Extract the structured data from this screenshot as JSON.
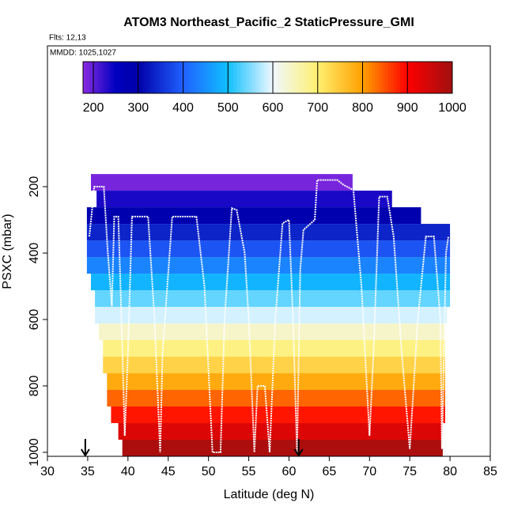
{
  "chart_data": {
    "type": "curtain",
    "title": "ATOM3 Northeast_Pacific_2 StaticPressure_GMI",
    "flights_label": "Flts: 12,13",
    "dates_label": "MMDD: 1025,1027",
    "xlabel": "Latitude (deg N)",
    "ylabel": "PSXC (mbar)",
    "xlim": [
      30,
      85
    ],
    "xticks": [
      30,
      35,
      40,
      45,
      50,
      55,
      60,
      65,
      70,
      75,
      80,
      85
    ],
    "ylim": [
      1012,
      -224
    ],
    "yticks": [
      200,
      400,
      600,
      800,
      1000
    ],
    "colorbar_lim": [
      177,
      1000
    ],
    "colorbar_ticks": [
      200,
      300,
      400,
      500,
      600,
      700,
      800,
      900,
      1000
    ],
    "colorscale": [
      [
        177,
        "#8a2be2"
      ],
      [
        250,
        "#0000c0"
      ],
      [
        300,
        "#0000a8"
      ],
      [
        400,
        "#2060ff"
      ],
      [
        500,
        "#10c0ff"
      ],
      [
        600,
        "#f0f8ff"
      ],
      [
        700,
        "#fff070"
      ],
      [
        800,
        "#ffa000"
      ],
      [
        900,
        "#ff0000"
      ],
      [
        1000,
        "#a01010"
      ]
    ],
    "layers": [
      {
        "value": 187,
        "p_top": 162,
        "p_bottom": 212,
        "lat_start": 35.4,
        "lat_end": 67.9
      },
      {
        "value": 237,
        "p_top": 212,
        "p_bottom": 262,
        "lat_start": 36.1,
        "lat_end": 72.8
      },
      {
        "value": 287,
        "p_top": 262,
        "p_bottom": 312,
        "lat_start": 34.9,
        "lat_end": 76.4
      },
      {
        "value": 337,
        "p_top": 312,
        "p_bottom": 362,
        "lat_start": 34.9,
        "lat_end": 80.0
      },
      {
        "value": 387,
        "p_top": 362,
        "p_bottom": 412,
        "lat_start": 34.9,
        "lat_end": 80.0
      },
      {
        "value": 437,
        "p_top": 412,
        "p_bottom": 462,
        "lat_start": 34.9,
        "lat_end": 80.0
      },
      {
        "value": 487,
        "p_top": 462,
        "p_bottom": 512,
        "lat_start": 35.4,
        "lat_end": 80.0
      },
      {
        "value": 537,
        "p_top": 512,
        "p_bottom": 562,
        "lat_start": 35.9,
        "lat_end": 80.0
      },
      {
        "value": 587,
        "p_top": 562,
        "p_bottom": 612,
        "lat_start": 35.9,
        "lat_end": 79.6
      },
      {
        "value": 637,
        "p_top": 612,
        "p_bottom": 662,
        "lat_start": 36.4,
        "lat_end": 79.4
      },
      {
        "value": 687,
        "p_top": 662,
        "p_bottom": 712,
        "lat_start": 36.9,
        "lat_end": 79.4
      },
      {
        "value": 737,
        "p_top": 712,
        "p_bottom": 762,
        "lat_start": 36.9,
        "lat_end": 79.4
      },
      {
        "value": 787,
        "p_top": 762,
        "p_bottom": 812,
        "lat_start": 37.4,
        "lat_end": 79.4
      },
      {
        "value": 837,
        "p_top": 812,
        "p_bottom": 862,
        "lat_start": 37.4,
        "lat_end": 79.4
      },
      {
        "value": 887,
        "p_top": 862,
        "p_bottom": 912,
        "lat_start": 37.9,
        "lat_end": 79.4
      },
      {
        "value": 937,
        "p_top": 912,
        "p_bottom": 962,
        "lat_start": 38.8,
        "lat_end": 79.1
      },
      {
        "value": 987,
        "p_top": 962,
        "p_bottom": 1012,
        "lat_start": 39.3,
        "lat_end": 79.1
      }
    ],
    "track": {
      "color": "#ffffff",
      "x": [
        35.2,
        35.5,
        35.8,
        37,
        37.5,
        38,
        38.3,
        38.8,
        39.2,
        39.6,
        40,
        40.5,
        42.5,
        43.3,
        44,
        44.3,
        45.5,
        48.5,
        49.5,
        50.5,
        51.5,
        52,
        52.9,
        53.5,
        54.5,
        55,
        55.7,
        56.1,
        57,
        57.6,
        58.3,
        59.2,
        60,
        60.5,
        61,
        61.4,
        61.8,
        63.2,
        63.5,
        66,
        66.8,
        68,
        69,
        70,
        70.5,
        71.2,
        72.2,
        73,
        74,
        75,
        76,
        77,
        78,
        78.8,
        79,
        79.5,
        79.8
      ],
      "values": [
        350,
        280,
        200,
        200,
        400,
        560,
        290,
        290,
        600,
        950,
        700,
        290,
        290,
        600,
        1000,
        700,
        290,
        290,
        500,
        1000,
        1000,
        600,
        265,
        270,
        400,
        600,
        1000,
        800,
        800,
        1000,
        600,
        310,
        300,
        600,
        1000,
        450,
        330,
        300,
        180,
        180,
        195,
        210,
        500,
        950,
        700,
        230,
        230,
        350,
        700,
        990,
        600,
        350,
        350,
        600,
        990,
        400,
        350
      ]
    },
    "arrows_lat": [
      34.7,
      61.2
    ]
  }
}
